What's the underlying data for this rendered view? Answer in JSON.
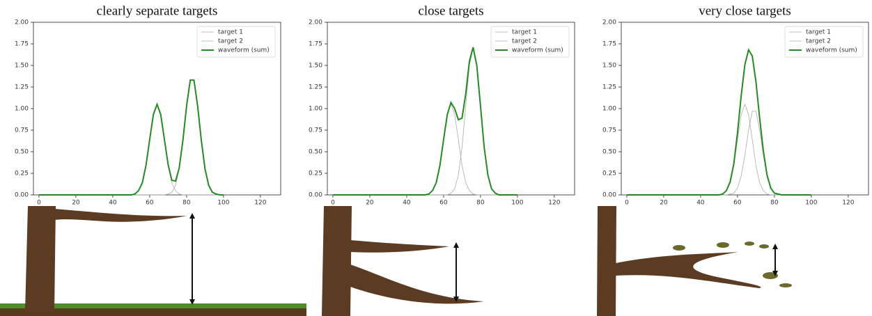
{
  "chart_data": [
    {
      "type": "line",
      "title": "clearly separate targets",
      "x": [
        0,
        44,
        46,
        48,
        50,
        52,
        54,
        56,
        58,
        60,
        62,
        64,
        66,
        68,
        70,
        72,
        74,
        76,
        78,
        80,
        82,
        84,
        86,
        88,
        90,
        92,
        94,
        96,
        98,
        100
      ],
      "series": [
        {
          "name": "target 1",
          "color": "#aaaaaa",
          "values": [
            0,
            0,
            0,
            0,
            0,
            0.01,
            0.05,
            0.14,
            0.34,
            0.64,
            0.93,
            1.05,
            0.93,
            0.64,
            0.34,
            0.14,
            0.05,
            0.01,
            0,
            0,
            0,
            0,
            0,
            0,
            0,
            0,
            0,
            0,
            0,
            0
          ]
        },
        {
          "name": "target 2",
          "color": "#aaaaaa",
          "values": [
            0,
            0,
            0,
            0,
            0,
            0,
            0,
            0,
            0,
            0,
            0,
            0,
            0,
            0,
            0.01,
            0.03,
            0.11,
            0.3,
            0.63,
            1.03,
            1.33,
            1.33,
            1.03,
            0.63,
            0.3,
            0.11,
            0.03,
            0.01,
            0,
            0
          ]
        },
        {
          "name": "waveform (sum)",
          "color": "#228b22",
          "values": [
            0,
            0,
            0,
            0,
            0,
            0.01,
            0.05,
            0.14,
            0.34,
            0.64,
            0.93,
            1.05,
            0.93,
            0.64,
            0.35,
            0.17,
            0.16,
            0.31,
            0.63,
            1.03,
            1.33,
            1.33,
            1.03,
            0.63,
            0.3,
            0.11,
            0.03,
            0.01,
            0,
            0
          ]
        }
      ],
      "xlim": [
        -3,
        131
      ],
      "xticks": [
        0,
        20,
        40,
        60,
        80,
        100,
        120
      ],
      "ylim": [
        0,
        2
      ],
      "yticks": [
        {
          "value": 0,
          "label": "0.00"
        },
        {
          "value": 0.25,
          "label": "0.25"
        },
        {
          "value": 0.5,
          "label": "0.50"
        },
        {
          "value": 0.75,
          "label": "0.75"
        },
        {
          "value": 1,
          "label": "1.00"
        },
        {
          "value": 1.25,
          "label": "1.25"
        },
        {
          "value": 1.5,
          "label": "1.50"
        },
        {
          "value": 1.75,
          "label": "1.75"
        },
        {
          "value": 2,
          "label": "2.00"
        }
      ],
      "legend": "upper right"
    },
    {
      "type": "line",
      "title": "close targets",
      "x": [
        0,
        44,
        46,
        48,
        50,
        52,
        54,
        56,
        58,
        60,
        62,
        64,
        66,
        68,
        70,
        72,
        74,
        76,
        78,
        80,
        82,
        84,
        86,
        88,
        90,
        92,
        94,
        96,
        98,
        100
      ],
      "series": [
        {
          "name": "target 1",
          "color": "#aaaaaa",
          "values": [
            0,
            0,
            0,
            0,
            0,
            0.01,
            0.05,
            0.14,
            0.34,
            0.64,
            0.93,
            1.05,
            0.93,
            0.64,
            0.34,
            0.14,
            0.05,
            0.01,
            0,
            0,
            0,
            0,
            0,
            0,
            0,
            0,
            0,
            0,
            0,
            0
          ]
        },
        {
          "name": "target 2",
          "color": "#aaaaaa",
          "values": [
            0,
            0,
            0,
            0,
            0,
            0,
            0,
            0,
            0,
            0,
            0,
            0.02,
            0.07,
            0.23,
            0.55,
            1.03,
            1.5,
            1.7,
            1.5,
            1.03,
            0.55,
            0.23,
            0.07,
            0.02,
            0,
            0,
            0,
            0,
            0,
            0
          ]
        },
        {
          "name": "waveform (sum)",
          "color": "#228b22",
          "values": [
            0,
            0,
            0,
            0,
            0,
            0.01,
            0.05,
            0.14,
            0.34,
            0.64,
            0.93,
            1.07,
            1,
            0.87,
            0.89,
            1.17,
            1.55,
            1.71,
            1.5,
            1.03,
            0.55,
            0.23,
            0.07,
            0.02,
            0,
            0,
            0,
            0,
            0,
            0
          ]
        }
      ],
      "xlim": [
        -3,
        131
      ],
      "xticks": [
        0,
        20,
        40,
        60,
        80,
        100,
        120
      ],
      "ylim": [
        0,
        2
      ],
      "yticks": [
        {
          "value": 0,
          "label": "0.00"
        },
        {
          "value": 0.25,
          "label": "0.25"
        },
        {
          "value": 0.5,
          "label": "0.50"
        },
        {
          "value": 0.75,
          "label": "0.75"
        },
        {
          "value": 1,
          "label": "1.00"
        },
        {
          "value": 1.25,
          "label": "1.25"
        },
        {
          "value": 1.5,
          "label": "1.50"
        },
        {
          "value": 1.75,
          "label": "1.75"
        },
        {
          "value": 2,
          "label": "2.00"
        }
      ],
      "legend": "upper right"
    },
    {
      "type": "line",
      "title": "very close targets",
      "x": [
        0,
        44,
        46,
        48,
        50,
        52,
        54,
        56,
        58,
        60,
        62,
        64,
        66,
        68,
        70,
        72,
        74,
        76,
        78,
        80,
        82,
        84,
        86,
        88,
        90,
        92,
        94,
        96,
        98,
        100
      ],
      "series": [
        {
          "name": "target 1",
          "color": "#aaaaaa",
          "values": [
            0,
            0,
            0,
            0,
            0,
            0.01,
            0.05,
            0.14,
            0.34,
            0.64,
            0.93,
            1.05,
            0.93,
            0.64,
            0.34,
            0.14,
            0.05,
            0.01,
            0,
            0,
            0,
            0,
            0,
            0,
            0,
            0,
            0,
            0,
            0,
            0
          ]
        },
        {
          "name": "target 2",
          "color": "#aaaaaa",
          "values": [
            0,
            0,
            0,
            0,
            0,
            0,
            0,
            0.01,
            0.02,
            0.08,
            0.22,
            0.46,
            0.75,
            0.97,
            0.97,
            0.75,
            0.46,
            0.22,
            0.08,
            0.02,
            0.01,
            0,
            0,
            0,
            0,
            0,
            0,
            0,
            0,
            0
          ]
        },
        {
          "name": "waveform (sum)",
          "color": "#228b22",
          "values": [
            0,
            0,
            0,
            0,
            0,
            0.01,
            0.05,
            0.15,
            0.36,
            0.72,
            1.15,
            1.51,
            1.68,
            1.61,
            1.31,
            0.89,
            0.51,
            0.23,
            0.08,
            0.02,
            0.01,
            0,
            0,
            0,
            0,
            0,
            0,
            0,
            0,
            0
          ]
        }
      ],
      "xlim": [
        -3,
        131
      ],
      "xticks": [
        0,
        20,
        40,
        60,
        80,
        100,
        120
      ],
      "ylim": [
        0,
        2
      ],
      "yticks": [
        {
          "value": 0,
          "label": "0.00"
        },
        {
          "value": 0.25,
          "label": "0.25"
        },
        {
          "value": 0.5,
          "label": "0.50"
        },
        {
          "value": 0.75,
          "label": "0.75"
        },
        {
          "value": 1,
          "label": "1.00"
        },
        {
          "value": 1.25,
          "label": "1.25"
        },
        {
          "value": 1.5,
          "label": "1.50"
        },
        {
          "value": 1.75,
          "label": "1.75"
        },
        {
          "value": 2,
          "label": "2.00"
        }
      ],
      "legend": "upper right"
    }
  ]
}
